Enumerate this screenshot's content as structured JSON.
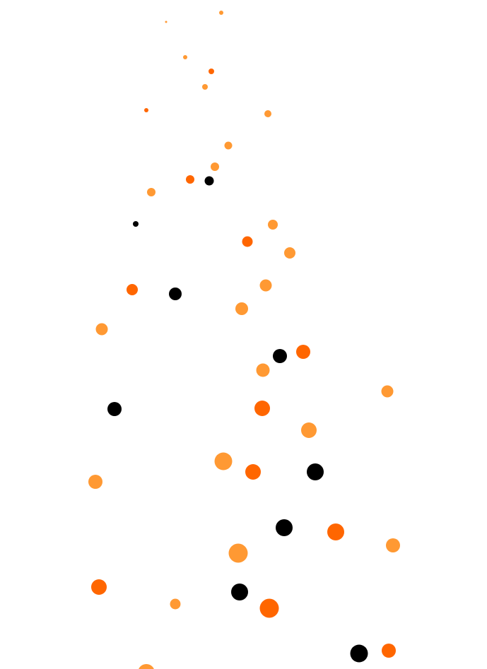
{
  "palette": {
    "background": "#ffffff",
    "light_orange": "#FF9933",
    "dark_orange": "#FF6600",
    "black": "#000000"
  }
}
